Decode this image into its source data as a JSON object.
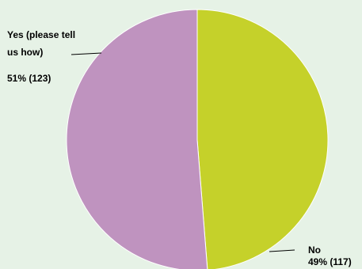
{
  "chart_data": {
    "type": "pie",
    "title": "",
    "slices": [
      {
        "label_lines": [
          "Yes (please tell",
          "us how)"
        ],
        "value_label": "51% (123)",
        "percent": 51,
        "count": 123,
        "color": "#bf93bf"
      },
      {
        "label_lines": [
          "No"
        ],
        "value_label": "49% (117)",
        "percent": 49,
        "count": 117,
        "color": "#c5d12a"
      }
    ],
    "legend": "none"
  }
}
